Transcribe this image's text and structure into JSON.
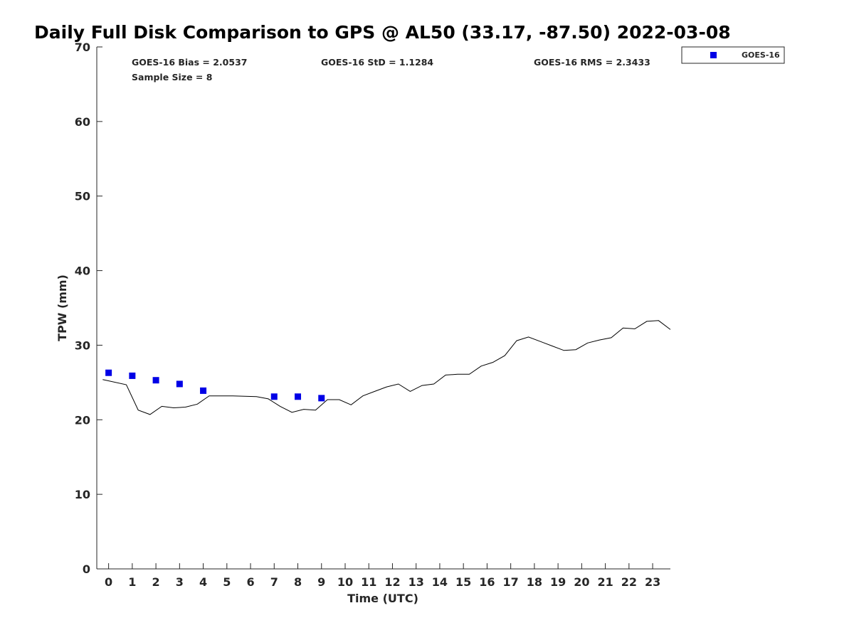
{
  "chart_data": {
    "type": "scatter",
    "title": "Daily Full Disk Comparison to GPS @ AL50 (33.17, -87.50) 2022-03-08",
    "xlabel": "Time (UTC)",
    "ylabel": "TPW (mm)",
    "xlim": [
      -0.5,
      23.75
    ],
    "ylim": [
      0,
      70
    ],
    "x_ticks": [
      0,
      1,
      2,
      3,
      4,
      5,
      6,
      7,
      8,
      9,
      10,
      11,
      12,
      13,
      14,
      15,
      16,
      17,
      18,
      19,
      20,
      21,
      22,
      23
    ],
    "y_ticks": [
      0,
      10,
      20,
      30,
      40,
      50,
      60,
      70
    ],
    "grid": false,
    "legend_position": "top-right, outside plot",
    "stats": {
      "bias": "GOES-16 Bias = 2.0537",
      "std": "GOES-16 StD = 1.1284",
      "rms": "GOES-16 RMS = 2.3433",
      "sample": "Sample Size = 8"
    },
    "series": [
      {
        "name": "GOES-16",
        "kind": "marker",
        "color": "#0000e6",
        "x": [
          0,
          1,
          2,
          3,
          4,
          7,
          8,
          9
        ],
        "y": [
          26.3,
          25.9,
          25.3,
          24.8,
          23.9,
          23.1,
          23.1,
          22.9
        ]
      },
      {
        "kind": "line",
        "color": "#000000",
        "x": [
          -0.25,
          0.75,
          1.25,
          1.75,
          2.25,
          2.75,
          3.25,
          3.75,
          4.25,
          5.25,
          6.25,
          6.75,
          7.25,
          7.75,
          8.25,
          8.75,
          9.25,
          9.75,
          10.25,
          10.75,
          11.25,
          11.75,
          12.25,
          12.75,
          13.25,
          13.75,
          14.25,
          14.75,
          15.25,
          15.75,
          16.25,
          16.75,
          17.25,
          17.75,
          18.25,
          18.75,
          19.25,
          19.75,
          20.25,
          20.75,
          21.25,
          21.75,
          22.25,
          22.75,
          23.25,
          23.75
        ],
        "y": [
          25.4,
          24.7,
          21.3,
          20.7,
          21.8,
          21.6,
          21.7,
          22.1,
          23.2,
          23.2,
          23.1,
          22.8,
          21.8,
          21.0,
          21.4,
          21.3,
          22.7,
          22.7,
          22.0,
          23.2,
          23.8,
          24.4,
          24.8,
          23.8,
          24.6,
          24.8,
          26.0,
          26.1,
          26.1,
          27.2,
          27.7,
          28.6,
          30.6,
          31.1,
          30.5,
          29.9,
          29.3,
          29.4,
          30.3,
          30.7,
          31.0,
          32.3,
          32.2,
          33.2,
          33.3,
          32.1
        ]
      }
    ]
  }
}
